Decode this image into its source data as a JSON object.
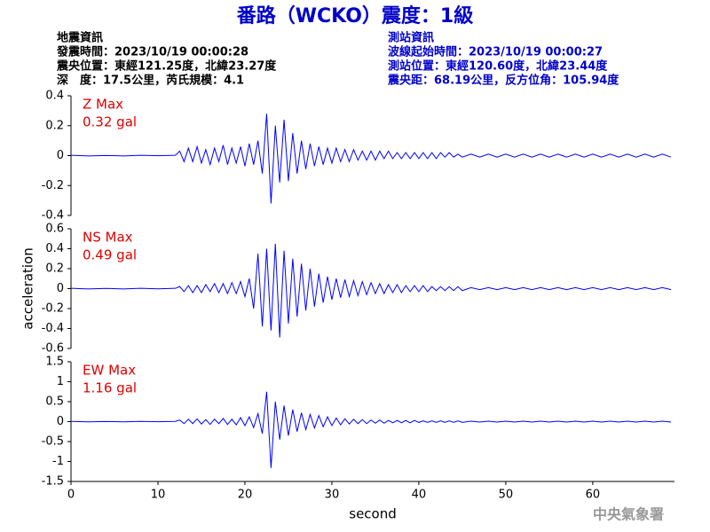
{
  "header": {
    "title": "番路（WCKO）震度：1級",
    "left": [
      "地震資訊",
      "發震時間：2023/10/19 00:00:28",
      "震央位置：東經121.25度，北緯23.27度",
      "深　度：17.5公里，芮氏規模：4.1"
    ],
    "right": [
      "測站資訊",
      "波線起始時間：2023/10/19 00:00:27",
      "測站位置：東經120.60度，北緯23.44度",
      "震央距：68.19公里，反方位角：105.94度"
    ]
  },
  "footer": "中央氣象署",
  "chart_data": [
    {
      "type": "line",
      "color": "#0000ff",
      "annotations": [
        "Z Max",
        "0.32 gal"
      ],
      "xlim": [
        0,
        69.4
      ],
      "ylim": [
        -0.4,
        0.4
      ],
      "yticks": [
        0.4,
        0.2,
        0,
        -0.2,
        -0.4
      ],
      "x": [
        0,
        2,
        4,
        6,
        8,
        10,
        12,
        12.5,
        13,
        13.5,
        14,
        14.5,
        15,
        15.5,
        16,
        16.5,
        17,
        17.5,
        18,
        18.5,
        19,
        19.5,
        20,
        20.5,
        21,
        21.5,
        22,
        22.5,
        23,
        23.5,
        24,
        24.5,
        25,
        25.5,
        26,
        26.5,
        27,
        27.5,
        28,
        28.5,
        29,
        29.5,
        30,
        30.5,
        31,
        31.5,
        32,
        32.5,
        33,
        33.5,
        34,
        34.5,
        35,
        35.5,
        36,
        36.5,
        37,
        37.5,
        38,
        38.5,
        39,
        39.5,
        40,
        40.5,
        41,
        41.5,
        42,
        42.5,
        43,
        43.5,
        44,
        44.5,
        45,
        46,
        47,
        48,
        49,
        50,
        51,
        52,
        53,
        54,
        55,
        56,
        57,
        58,
        59,
        60,
        61,
        62,
        63,
        64,
        65,
        66,
        67,
        68,
        69
      ],
      "values": [
        0.002,
        -0.002,
        0.001,
        -0.002,
        0.002,
        -0.001,
        0.002,
        0.03,
        -0.04,
        0.05,
        -0.04,
        0.06,
        -0.05,
        0.04,
        -0.06,
        0.05,
        -0.04,
        0.07,
        -0.06,
        0.05,
        -0.05,
        0.06,
        -0.07,
        0.08,
        -0.06,
        0.1,
        -0.12,
        0.28,
        -0.32,
        0.2,
        -0.18,
        0.24,
        -0.17,
        0.15,
        -0.12,
        0.1,
        -0.09,
        0.08,
        -0.07,
        0.06,
        -0.06,
        0.05,
        -0.05,
        0.05,
        -0.04,
        0.04,
        -0.04,
        0.04,
        -0.03,
        0.03,
        -0.03,
        0.03,
        -0.03,
        0.03,
        -0.02,
        0.03,
        -0.02,
        0.02,
        -0.02,
        0.02,
        -0.02,
        0.02,
        -0.02,
        0.02,
        -0.02,
        0.02,
        -0.02,
        0.02,
        -0.01,
        0.02,
        -0.01,
        0.01,
        -0.01,
        0.01,
        -0.01,
        0.01,
        -0.01,
        0.01,
        -0.01,
        0.01,
        -0.01,
        0.01,
        -0.01,
        0.01,
        -0.01,
        0.01,
        -0.01,
        0.01,
        -0.01,
        0.01,
        -0.01,
        0.01,
        -0.01,
        0.01,
        -0.01,
        0.01,
        -0.01
      ]
    },
    {
      "type": "line",
      "color": "#0000ff",
      "annotations": [
        "NS Max",
        "0.49 gal"
      ],
      "ylabel": "acceleration",
      "xlim": [
        0,
        69.4
      ],
      "ylim": [
        -0.6,
        0.6
      ],
      "yticks": [
        0.6,
        0.4,
        0.2,
        0,
        -0.2,
        -0.4,
        -0.6
      ],
      "x": [
        0,
        2,
        4,
        6,
        8,
        10,
        12,
        12.5,
        13,
        13.5,
        14,
        14.5,
        15,
        15.5,
        16,
        16.5,
        17,
        17.5,
        18,
        18.5,
        19,
        19.5,
        20,
        20.5,
        21,
        21.5,
        22,
        22.5,
        23,
        23.5,
        24,
        24.5,
        25,
        25.5,
        26,
        26.5,
        27,
        27.5,
        28,
        28.5,
        29,
        29.5,
        30,
        30.5,
        31,
        31.5,
        32,
        32.5,
        33,
        33.5,
        34,
        34.5,
        35,
        35.5,
        36,
        36.5,
        37,
        37.5,
        38,
        38.5,
        39,
        39.5,
        40,
        40.5,
        41,
        41.5,
        42,
        42.5,
        43,
        43.5,
        44,
        44.5,
        45,
        46,
        47,
        48,
        49,
        50,
        51,
        52,
        53,
        54,
        55,
        56,
        57,
        58,
        59,
        60,
        61,
        62,
        63,
        64,
        65,
        66,
        67,
        68,
        69
      ],
      "values": [
        0.003,
        -0.003,
        0.002,
        -0.003,
        0.003,
        -0.002,
        0.003,
        0.02,
        -0.03,
        0.03,
        -0.04,
        0.03,
        -0.04,
        0.04,
        -0.03,
        0.05,
        -0.04,
        0.05,
        -0.05,
        0.06,
        -0.05,
        0.07,
        -0.08,
        0.1,
        -0.2,
        0.35,
        -0.38,
        0.4,
        -0.42,
        0.45,
        -0.49,
        0.38,
        -0.35,
        0.3,
        -0.28,
        0.25,
        -0.22,
        0.2,
        -0.18,
        0.15,
        -0.14,
        0.12,
        -0.11,
        0.1,
        -0.09,
        0.09,
        -0.08,
        0.08,
        -0.07,
        0.07,
        -0.06,
        0.06,
        -0.05,
        0.05,
        -0.05,
        0.04,
        -0.04,
        0.04,
        -0.04,
        0.03,
        -0.03,
        0.03,
        -0.03,
        0.03,
        -0.03,
        0.02,
        -0.02,
        0.02,
        -0.02,
        0.02,
        -0.02,
        0.02,
        -0.02,
        0.01,
        -0.01,
        0.01,
        -0.01,
        0.01,
        -0.01,
        0.01,
        -0.01,
        0.01,
        -0.01,
        0.01,
        -0.01,
        0.01,
        -0.01,
        0.01,
        -0.01,
        0.01,
        -0.01,
        0.01,
        -0.01,
        0.01,
        -0.01,
        0.01,
        -0.01
      ]
    },
    {
      "type": "line",
      "color": "#0000ff",
      "annotations": [
        "EW Max",
        "1.16 gal"
      ],
      "xlabel": "second",
      "xlim": [
        0,
        69.4
      ],
      "ylim": [
        -1.5,
        1.5
      ],
      "yticks": [
        1.5,
        1,
        0.5,
        0,
        -0.5,
        -1,
        -1.5
      ],
      "xticks": [
        0,
        10,
        20,
        30,
        40,
        50,
        60
      ],
      "x": [
        0,
        2,
        4,
        6,
        8,
        10,
        12,
        12.5,
        13,
        13.5,
        14,
        14.5,
        15,
        15.5,
        16,
        16.5,
        17,
        17.5,
        18,
        18.5,
        19,
        19.5,
        20,
        20.5,
        21,
        21.5,
        22,
        22.5,
        23,
        23.5,
        24,
        24.5,
        25,
        25.5,
        26,
        26.5,
        27,
        27.5,
        28,
        28.5,
        29,
        29.5,
        30,
        30.5,
        31,
        31.5,
        32,
        32.5,
        33,
        33.5,
        34,
        34.5,
        35,
        35.5,
        36,
        36.5,
        37,
        37.5,
        38,
        38.5,
        39,
        39.5,
        40,
        40.5,
        41,
        41.5,
        42,
        42.5,
        43,
        43.5,
        44,
        44.5,
        45,
        46,
        47,
        48,
        49,
        50,
        51,
        52,
        53,
        54,
        55,
        56,
        57,
        58,
        59,
        60,
        61,
        62,
        63,
        64,
        65,
        66,
        67,
        68,
        69
      ],
      "values": [
        0.005,
        -0.005,
        0.004,
        -0.005,
        0.005,
        -0.004,
        0.005,
        0.04,
        -0.05,
        0.06,
        -0.05,
        0.07,
        -0.06,
        0.05,
        -0.07,
        0.06,
        -0.05,
        0.08,
        -0.07,
        0.06,
        -0.08,
        0.1,
        -0.1,
        0.12,
        -0.15,
        0.2,
        -0.3,
        0.75,
        -1.16,
        0.5,
        -0.45,
        0.4,
        -0.35,
        0.3,
        -0.25,
        0.22,
        -0.2,
        0.18,
        -0.16,
        0.15,
        -0.13,
        0.12,
        -0.1,
        0.09,
        -0.08,
        0.07,
        -0.06,
        0.06,
        -0.05,
        0.05,
        -0.05,
        0.04,
        -0.04,
        0.04,
        -0.04,
        0.03,
        -0.03,
        0.03,
        -0.03,
        0.03,
        -0.03,
        0.03,
        -0.02,
        0.02,
        -0.02,
        0.02,
        -0.02,
        0.02,
        -0.02,
        0.02,
        -0.02,
        0.02,
        -0.02,
        0.01,
        -0.01,
        0.01,
        -0.01,
        0.01,
        -0.01,
        0.01,
        -0.01,
        0.01,
        -0.01,
        0.01,
        -0.01,
        0.01,
        -0.01,
        0.01,
        -0.01,
        0.01,
        -0.01,
        0.01,
        -0.01,
        0.01,
        -0.01,
        0.01,
        -0.01
      ]
    }
  ]
}
